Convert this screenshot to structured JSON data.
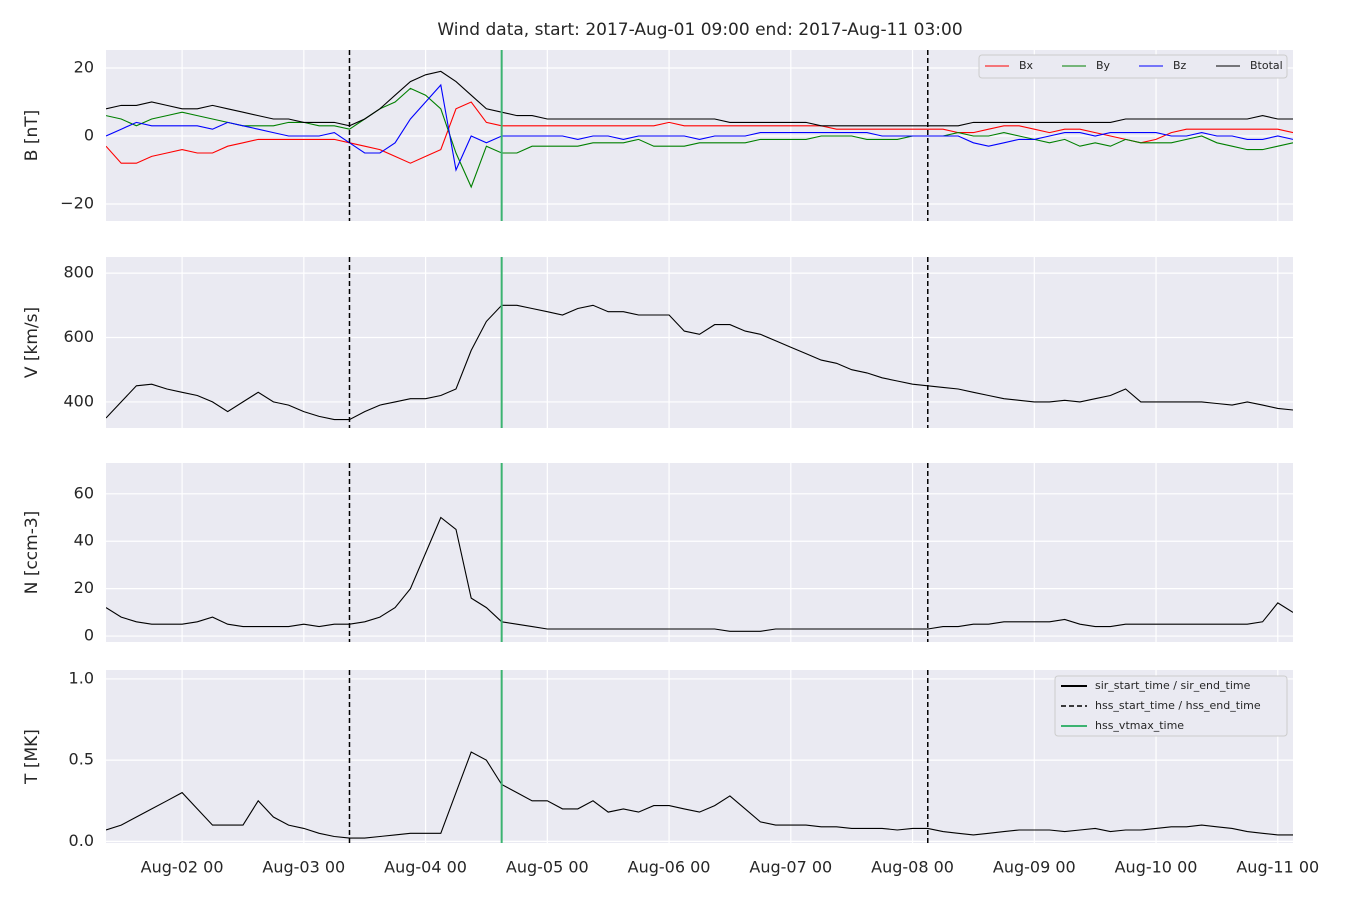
{
  "title": "Wind data, start: 2017-Aug-01 09:00  end: 2017-Aug-11 03:00",
  "events": [
    {
      "name": "sir_start_time / sir_end_time",
      "color": "#000000",
      "style": "solid"
    },
    {
      "name": "hss_start_time / hss_end_time",
      "color": "#000000",
      "style": "dashed",
      "times": [
        "Aug-03 09",
        "Aug-08 03"
      ]
    },
    {
      "name": "hss_vtmax_time",
      "color": "#3cb371",
      "style": "solid",
      "times": [
        "Aug-04 15"
      ]
    }
  ],
  "chart_data": [
    {
      "type": "line",
      "ylabel": "B [nT]",
      "ylim": [
        -25,
        25.3
      ],
      "yticks": [
        {
          "value": -20,
          "label": "−20"
        },
        0,
        20
      ],
      "grid": true,
      "xlim": [
        "Aug-01 09",
        "Aug-11 03"
      ],
      "xticks": [
        "Aug-02 00",
        "Aug-03 00",
        "Aug-04 00",
        "Aug-05 00",
        "Aug-06 00",
        "Aug-07 00",
        "Aug-08 00",
        "Aug-09 00",
        "Aug-10 00",
        "Aug-11 00"
      ],
      "x": [
        "Aug-01 09",
        "Aug-01 12",
        "Aug-01 15",
        "Aug-01 18",
        "Aug-01 21",
        "Aug-02 00",
        "Aug-02 03",
        "Aug-02 06",
        "Aug-02 09",
        "Aug-02 12",
        "Aug-02 15",
        "Aug-02 18",
        "Aug-02 21",
        "Aug-03 00",
        "Aug-03 03",
        "Aug-03 06",
        "Aug-03 09",
        "Aug-03 12",
        "Aug-03 15",
        "Aug-03 18",
        "Aug-03 21",
        "Aug-04 00",
        "Aug-04 03",
        "Aug-04 06",
        "Aug-04 09",
        "Aug-04 12",
        "Aug-04 15",
        "Aug-04 18",
        "Aug-04 21",
        "Aug-05 00",
        "Aug-05 03",
        "Aug-05 06",
        "Aug-05 09",
        "Aug-05 12",
        "Aug-05 15",
        "Aug-05 18",
        "Aug-05 21",
        "Aug-06 00",
        "Aug-06 03",
        "Aug-06 06",
        "Aug-06 09",
        "Aug-06 12",
        "Aug-06 15",
        "Aug-06 18",
        "Aug-06 21",
        "Aug-07 00",
        "Aug-07 03",
        "Aug-07 06",
        "Aug-07 09",
        "Aug-07 12",
        "Aug-07 15",
        "Aug-07 18",
        "Aug-07 21",
        "Aug-08 00",
        "Aug-08 03",
        "Aug-08 06",
        "Aug-08 09",
        "Aug-08 12",
        "Aug-08 15",
        "Aug-08 18",
        "Aug-08 21",
        "Aug-09 00",
        "Aug-09 03",
        "Aug-09 06",
        "Aug-09 09",
        "Aug-09 12",
        "Aug-09 15",
        "Aug-09 18",
        "Aug-09 21",
        "Aug-10 00",
        "Aug-10 03",
        "Aug-10 06",
        "Aug-10 09",
        "Aug-10 12",
        "Aug-10 15",
        "Aug-10 18",
        "Aug-10 21",
        "Aug-11 00",
        "Aug-11 03"
      ],
      "legend": "upper right",
      "series": [
        {
          "name": "Bx",
          "color": "#ff0000",
          "values": [
            -3,
            -8,
            -8,
            -6,
            -5,
            -4,
            -5,
            -5,
            -3,
            -2,
            -1,
            -1,
            -1,
            -1,
            -1,
            -1,
            -2,
            -3,
            -4,
            -6,
            -8,
            -6,
            -4,
            8,
            10,
            4,
            3,
            3,
            3,
            3,
            3,
            3,
            3,
            3,
            3,
            3,
            3,
            4,
            3,
            3,
            3,
            3,
            3,
            3,
            3,
            3,
            3,
            3,
            2,
            2,
            2,
            2,
            2,
            2,
            2,
            2,
            1,
            1,
            2,
            3,
            3,
            2,
            1,
            2,
            2,
            1,
            0,
            -1,
            -2,
            -1,
            1,
            2,
            2,
            2,
            2,
            2,
            2,
            2,
            1
          ]
        },
        {
          "name": "By",
          "color": "#008000",
          "values": [
            6,
            5,
            3,
            5,
            6,
            7,
            6,
            5,
            4,
            3,
            3,
            3,
            4,
            4,
            3,
            3,
            2,
            5,
            8,
            10,
            14,
            12,
            8,
            -5,
            -15,
            -3,
            -5,
            -5,
            -3,
            -3,
            -3,
            -3,
            -2,
            -2,
            -2,
            -1,
            -3,
            -3,
            -3,
            -2,
            -2,
            -2,
            -2,
            -1,
            -1,
            -1,
            -1,
            0,
            0,
            0,
            -1,
            -1,
            -1,
            0,
            0,
            0,
            1,
            0,
            0,
            1,
            0,
            -1,
            -2,
            -1,
            -3,
            -2,
            -3,
            -1,
            -2,
            -2,
            -2,
            -1,
            0,
            -2,
            -3,
            -4,
            -4,
            -3,
            -2
          ]
        },
        {
          "name": "Bz",
          "color": "#0000ff",
          "values": [
            0,
            2,
            4,
            3,
            3,
            3,
            3,
            2,
            4,
            3,
            2,
            1,
            0,
            0,
            0,
            1,
            -2,
            -5,
            -5,
            -2,
            5,
            10,
            15,
            -10,
            0,
            -2,
            0,
            0,
            0,
            0,
            0,
            -1,
            0,
            0,
            -1,
            0,
            0,
            0,
            0,
            -1,
            0,
            0,
            0,
            1,
            1,
            1,
            1,
            1,
            1,
            1,
            1,
            0,
            0,
            0,
            0,
            0,
            0,
            -2,
            -3,
            -2,
            -1,
            -1,
            0,
            1,
            1,
            0,
            1,
            1,
            1,
            1,
            0,
            0,
            1,
            0,
            0,
            -1,
            -1,
            0,
            -1
          ]
        },
        {
          "name": "Btotal",
          "color": "#000000",
          "values": [
            8,
            9,
            9,
            10,
            9,
            8,
            8,
            9,
            8,
            7,
            6,
            5,
            5,
            4,
            4,
            4,
            3,
            5,
            8,
            12,
            16,
            18,
            19,
            16,
            12,
            8,
            7,
            6,
            6,
            5,
            5,
            5,
            5,
            5,
            5,
            5,
            5,
            5,
            5,
            5,
            5,
            4,
            4,
            4,
            4,
            4,
            4,
            3,
            3,
            3,
            3,
            3,
            3,
            3,
            3,
            3,
            3,
            4,
            4,
            4,
            4,
            4,
            4,
            4,
            4,
            4,
            4,
            5,
            5,
            5,
            5,
            5,
            5,
            5,
            5,
            5,
            6,
            5,
            5
          ]
        }
      ]
    },
    {
      "type": "line",
      "ylabel": "V [km/s]",
      "ylim": [
        319,
        850
      ],
      "yticks": [
        400,
        600,
        800
      ],
      "grid": true,
      "xlim": [
        "Aug-01 09",
        "Aug-11 03"
      ],
      "xticks": [
        "Aug-02 00",
        "Aug-03 00",
        "Aug-04 00",
        "Aug-05 00",
        "Aug-06 00",
        "Aug-07 00",
        "Aug-08 00",
        "Aug-09 00",
        "Aug-10 00",
        "Aug-11 00"
      ],
      "x": [
        "Aug-01 09",
        "Aug-01 12",
        "Aug-01 15",
        "Aug-01 18",
        "Aug-01 21",
        "Aug-02 00",
        "Aug-02 03",
        "Aug-02 06",
        "Aug-02 09",
        "Aug-02 12",
        "Aug-02 15",
        "Aug-02 18",
        "Aug-02 21",
        "Aug-03 00",
        "Aug-03 03",
        "Aug-03 06",
        "Aug-03 09",
        "Aug-03 12",
        "Aug-03 15",
        "Aug-03 18",
        "Aug-03 21",
        "Aug-04 00",
        "Aug-04 03",
        "Aug-04 06",
        "Aug-04 09",
        "Aug-04 12",
        "Aug-04 15",
        "Aug-04 18",
        "Aug-04 21",
        "Aug-05 00",
        "Aug-05 03",
        "Aug-05 06",
        "Aug-05 09",
        "Aug-05 12",
        "Aug-05 15",
        "Aug-05 18",
        "Aug-05 21",
        "Aug-06 00",
        "Aug-06 03",
        "Aug-06 06",
        "Aug-06 09",
        "Aug-06 12",
        "Aug-06 15",
        "Aug-06 18",
        "Aug-06 21",
        "Aug-07 00",
        "Aug-07 03",
        "Aug-07 06",
        "Aug-07 09",
        "Aug-07 12",
        "Aug-07 15",
        "Aug-07 18",
        "Aug-07 21",
        "Aug-08 00",
        "Aug-08 03",
        "Aug-08 06",
        "Aug-08 09",
        "Aug-08 12",
        "Aug-08 15",
        "Aug-08 18",
        "Aug-08 21",
        "Aug-09 00",
        "Aug-09 03",
        "Aug-09 06",
        "Aug-09 09",
        "Aug-09 12",
        "Aug-09 15",
        "Aug-09 18",
        "Aug-09 21",
        "Aug-10 00",
        "Aug-10 03",
        "Aug-10 06",
        "Aug-10 09",
        "Aug-10 12",
        "Aug-10 15",
        "Aug-10 18",
        "Aug-10 21",
        "Aug-11 00",
        "Aug-11 03"
      ],
      "series": [
        {
          "color": "#000000",
          "values": [
            350,
            400,
            450,
            455,
            440,
            430,
            420,
            400,
            370,
            400,
            430,
            400,
            390,
            370,
            355,
            345,
            345,
            370,
            390,
            400,
            410,
            410,
            420,
            440,
            560,
            650,
            700,
            700,
            690,
            680,
            670,
            690,
            700,
            680,
            680,
            670,
            670,
            670,
            620,
            610,
            640,
            640,
            620,
            610,
            590,
            570,
            550,
            530,
            520,
            500,
            490,
            475,
            465,
            455,
            450,
            445,
            440,
            430,
            420,
            410,
            405,
            400,
            400,
            405,
            400,
            410,
            420,
            440,
            400,
            400,
            400,
            400,
            400,
            395,
            390,
            400,
            390,
            380,
            375
          ]
        }
      ]
    },
    {
      "type": "line",
      "ylabel": "N [ccm-3]",
      "ylim": [
        -2.5,
        73
      ],
      "yticks": [
        0,
        20,
        40,
        60
      ],
      "grid": true,
      "xlim": [
        "Aug-01 09",
        "Aug-11 03"
      ],
      "xticks": [
        "Aug-02 00",
        "Aug-03 00",
        "Aug-04 00",
        "Aug-05 00",
        "Aug-06 00",
        "Aug-07 00",
        "Aug-08 00",
        "Aug-09 00",
        "Aug-10 00",
        "Aug-11 00"
      ],
      "x": [
        "Aug-01 09",
        "Aug-01 12",
        "Aug-01 15",
        "Aug-01 18",
        "Aug-01 21",
        "Aug-02 00",
        "Aug-02 03",
        "Aug-02 06",
        "Aug-02 09",
        "Aug-02 12",
        "Aug-02 15",
        "Aug-02 18",
        "Aug-02 21",
        "Aug-03 00",
        "Aug-03 03",
        "Aug-03 06",
        "Aug-03 09",
        "Aug-03 12",
        "Aug-03 15",
        "Aug-03 18",
        "Aug-03 21",
        "Aug-04 00",
        "Aug-04 03",
        "Aug-04 06",
        "Aug-04 09",
        "Aug-04 12",
        "Aug-04 15",
        "Aug-04 18",
        "Aug-04 21",
        "Aug-05 00",
        "Aug-05 03",
        "Aug-05 06",
        "Aug-05 09",
        "Aug-05 12",
        "Aug-05 15",
        "Aug-05 18",
        "Aug-05 21",
        "Aug-06 00",
        "Aug-06 03",
        "Aug-06 06",
        "Aug-06 09",
        "Aug-06 12",
        "Aug-06 15",
        "Aug-06 18",
        "Aug-06 21",
        "Aug-07 00",
        "Aug-07 03",
        "Aug-07 06",
        "Aug-07 09",
        "Aug-07 12",
        "Aug-07 15",
        "Aug-07 18",
        "Aug-07 21",
        "Aug-08 00",
        "Aug-08 03",
        "Aug-08 06",
        "Aug-08 09",
        "Aug-08 12",
        "Aug-08 15",
        "Aug-08 18",
        "Aug-08 21",
        "Aug-09 00",
        "Aug-09 03",
        "Aug-09 06",
        "Aug-09 09",
        "Aug-09 12",
        "Aug-09 15",
        "Aug-09 18",
        "Aug-09 21",
        "Aug-10 00",
        "Aug-10 03",
        "Aug-10 06",
        "Aug-10 09",
        "Aug-10 12",
        "Aug-10 15",
        "Aug-10 18",
        "Aug-10 21",
        "Aug-11 00",
        "Aug-11 03"
      ],
      "series": [
        {
          "color": "#000000",
          "values": [
            12,
            8,
            6,
            5,
            5,
            5,
            6,
            8,
            5,
            4,
            4,
            4,
            4,
            5,
            4,
            5,
            5,
            6,
            8,
            12,
            20,
            35,
            50,
            45,
            16,
            12,
            6,
            5,
            4,
            3,
            3,
            3,
            3,
            3,
            3,
            3,
            3,
            3,
            3,
            3,
            3,
            2,
            2,
            2,
            3,
            3,
            3,
            3,
            3,
            3,
            3,
            3,
            3,
            3,
            3,
            4,
            4,
            5,
            5,
            6,
            6,
            6,
            6,
            7,
            5,
            4,
            4,
            5,
            5,
            5,
            5,
            5,
            5,
            5,
            5,
            5,
            6,
            14,
            10
          ]
        }
      ]
    },
    {
      "type": "line",
      "ylabel": "T [MK]",
      "ylim": [
        -0.01,
        1.055
      ],
      "yticks": [
        {
          "value": 0,
          "label": "0.0"
        },
        0.5,
        {
          "value": 1,
          "label": "1.0"
        }
      ],
      "grid": true,
      "xlim": [
        "Aug-01 09",
        "Aug-11 03"
      ],
      "xticks": [
        "Aug-02 00",
        "Aug-03 00",
        "Aug-04 00",
        "Aug-05 00",
        "Aug-06 00",
        "Aug-07 00",
        "Aug-08 00",
        "Aug-09 00",
        "Aug-10 00",
        "Aug-11 00"
      ],
      "x": [
        "Aug-01 09",
        "Aug-01 12",
        "Aug-01 15",
        "Aug-01 18",
        "Aug-01 21",
        "Aug-02 00",
        "Aug-02 03",
        "Aug-02 06",
        "Aug-02 09",
        "Aug-02 12",
        "Aug-02 15",
        "Aug-02 18",
        "Aug-02 21",
        "Aug-03 00",
        "Aug-03 03",
        "Aug-03 06",
        "Aug-03 09",
        "Aug-03 12",
        "Aug-03 15",
        "Aug-03 18",
        "Aug-03 21",
        "Aug-04 00",
        "Aug-04 03",
        "Aug-04 06",
        "Aug-04 09",
        "Aug-04 12",
        "Aug-04 15",
        "Aug-04 18",
        "Aug-04 21",
        "Aug-05 00",
        "Aug-05 03",
        "Aug-05 06",
        "Aug-05 09",
        "Aug-05 12",
        "Aug-05 15",
        "Aug-05 18",
        "Aug-05 21",
        "Aug-06 00",
        "Aug-06 03",
        "Aug-06 06",
        "Aug-06 09",
        "Aug-06 12",
        "Aug-06 15",
        "Aug-06 18",
        "Aug-06 21",
        "Aug-07 00",
        "Aug-07 03",
        "Aug-07 06",
        "Aug-07 09",
        "Aug-07 12",
        "Aug-07 15",
        "Aug-07 18",
        "Aug-07 21",
        "Aug-08 00",
        "Aug-08 03",
        "Aug-08 06",
        "Aug-08 09",
        "Aug-08 12",
        "Aug-08 15",
        "Aug-08 18",
        "Aug-08 21",
        "Aug-09 00",
        "Aug-09 03",
        "Aug-09 06",
        "Aug-09 09",
        "Aug-09 12",
        "Aug-09 15",
        "Aug-09 18",
        "Aug-09 21",
        "Aug-10 00",
        "Aug-10 03",
        "Aug-10 06",
        "Aug-10 09",
        "Aug-10 12",
        "Aug-10 15",
        "Aug-10 18",
        "Aug-10 21",
        "Aug-11 00",
        "Aug-11 03"
      ],
      "legend": "upper right",
      "series": [
        {
          "color": "#000000",
          "values": [
            0.07,
            0.1,
            0.15,
            0.2,
            0.25,
            0.3,
            0.2,
            0.1,
            0.1,
            0.1,
            0.25,
            0.15,
            0.1,
            0.08,
            0.05,
            0.03,
            0.02,
            0.02,
            0.03,
            0.04,
            0.05,
            0.05,
            0.05,
            0.3,
            0.55,
            0.5,
            0.35,
            0.3,
            0.25,
            0.25,
            0.2,
            0.2,
            0.25,
            0.18,
            0.2,
            0.18,
            0.22,
            0.22,
            0.2,
            0.18,
            0.22,
            0.28,
            0.2,
            0.12,
            0.1,
            0.1,
            0.1,
            0.09,
            0.09,
            0.08,
            0.08,
            0.08,
            0.07,
            0.08,
            0.08,
            0.06,
            0.05,
            0.04,
            0.05,
            0.06,
            0.07,
            0.07,
            0.07,
            0.06,
            0.07,
            0.08,
            0.06,
            0.07,
            0.07,
            0.08,
            0.09,
            0.09,
            0.1,
            0.09,
            0.08,
            0.06,
            0.05,
            0.04,
            0.04
          ]
        }
      ]
    }
  ]
}
